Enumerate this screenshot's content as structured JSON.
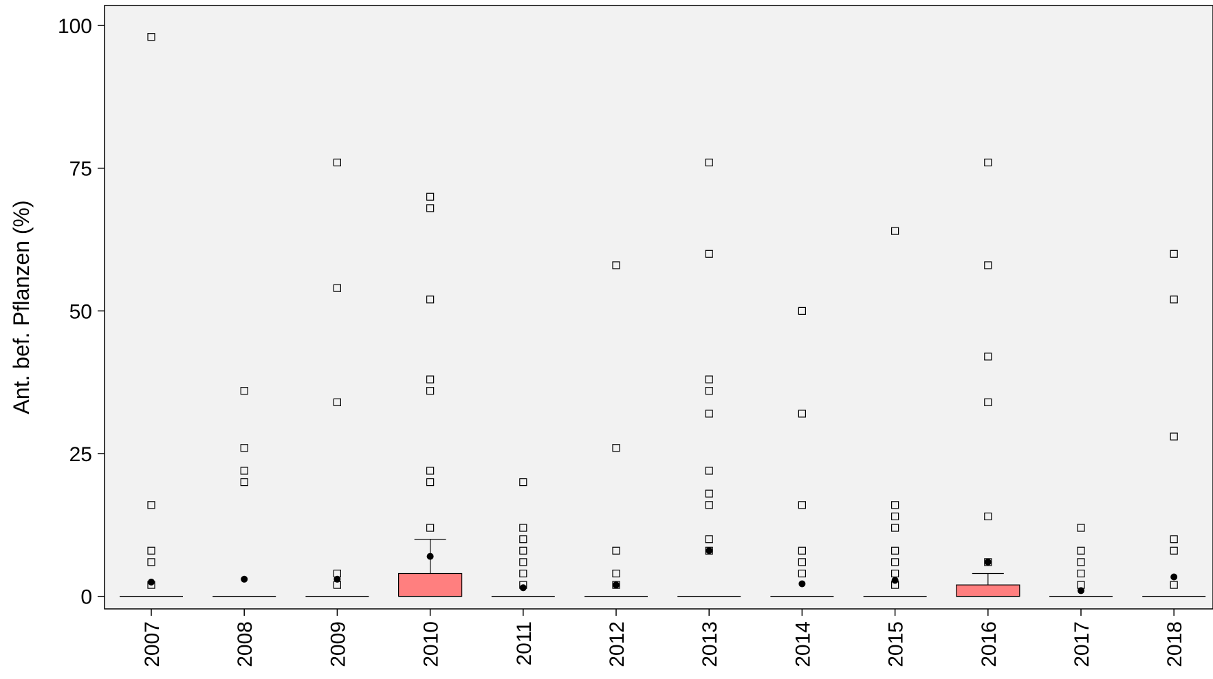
{
  "chart_data": {
    "type": "boxplot",
    "ylabel": "Ant. bef. Pflanzen (%)",
    "xlabel": "",
    "ylim": [
      -2.2,
      103.5
    ],
    "yticks": [
      0,
      25,
      50,
      75,
      100
    ],
    "grid": false,
    "plot_background": "#f2f2f2",
    "box_color": "#ff7f7f",
    "categories": [
      "2007",
      "2008",
      "2009",
      "2010",
      "2011",
      "2012",
      "2013",
      "2014",
      "2015",
      "2016",
      "2017",
      "2018"
    ],
    "boxes": [
      {
        "year": "2007",
        "q1": 0,
        "median": 0,
        "q3": 0,
        "whisker_low": 0,
        "whisker_high": 0,
        "mean": 2.5,
        "outliers": [
          98,
          16,
          8,
          6,
          2
        ]
      },
      {
        "year": "2008",
        "q1": 0,
        "median": 0,
        "q3": 0,
        "whisker_low": 0,
        "whisker_high": 0,
        "mean": 3,
        "outliers": [
          36,
          26,
          22,
          20
        ]
      },
      {
        "year": "2009",
        "q1": 0,
        "median": 0,
        "q3": 0,
        "whisker_low": 0,
        "whisker_high": 0,
        "mean": 3,
        "outliers": [
          76,
          54,
          34,
          4,
          2
        ]
      },
      {
        "year": "2010",
        "q1": 0,
        "median": 0,
        "q3": 4,
        "whisker_low": 0,
        "whisker_high": 10,
        "mean": 7,
        "outliers": [
          70,
          68,
          52,
          38,
          36,
          22,
          20,
          12
        ]
      },
      {
        "year": "2011",
        "q1": 0,
        "median": 0,
        "q3": 0,
        "whisker_low": 0,
        "whisker_high": 0,
        "mean": 1.5,
        "outliers": [
          20,
          12,
          10,
          8,
          6,
          4,
          2
        ]
      },
      {
        "year": "2012",
        "q1": 0,
        "median": 0,
        "q3": 0,
        "whisker_low": 0,
        "whisker_high": 0,
        "mean": 2,
        "outliers": [
          58,
          26,
          8,
          4,
          2
        ]
      },
      {
        "year": "2013",
        "q1": 0,
        "median": 0,
        "q3": 0,
        "whisker_low": 0,
        "whisker_high": 0,
        "mean": 8,
        "outliers": [
          76,
          60,
          38,
          36,
          32,
          22,
          18,
          16,
          10,
          8
        ]
      },
      {
        "year": "2014",
        "q1": 0,
        "median": 0,
        "q3": 0,
        "whisker_low": 0,
        "whisker_high": 0,
        "mean": 2.2,
        "outliers": [
          50,
          32,
          16,
          8,
          6,
          4
        ]
      },
      {
        "year": "2015",
        "q1": 0,
        "median": 0,
        "q3": 0,
        "whisker_low": 0,
        "whisker_high": 0,
        "mean": 2.8,
        "outliers": [
          64,
          16,
          14,
          12,
          8,
          6,
          4,
          2
        ]
      },
      {
        "year": "2016",
        "q1": 0,
        "median": 0,
        "q3": 2,
        "whisker_low": 0,
        "whisker_high": 4,
        "mean": 6,
        "outliers": [
          76,
          58,
          42,
          34,
          14,
          6
        ]
      },
      {
        "year": "2017",
        "q1": 0,
        "median": 0,
        "q3": 0,
        "whisker_low": 0,
        "whisker_high": 0,
        "mean": 1,
        "outliers": [
          12,
          8,
          6,
          4,
          2
        ]
      },
      {
        "year": "2018",
        "q1": 0,
        "median": 0,
        "q3": 0,
        "whisker_low": 0,
        "whisker_high": 0,
        "mean": 3.4,
        "outliers": [
          60,
          52,
          28,
          10,
          8,
          2
        ]
      }
    ]
  }
}
